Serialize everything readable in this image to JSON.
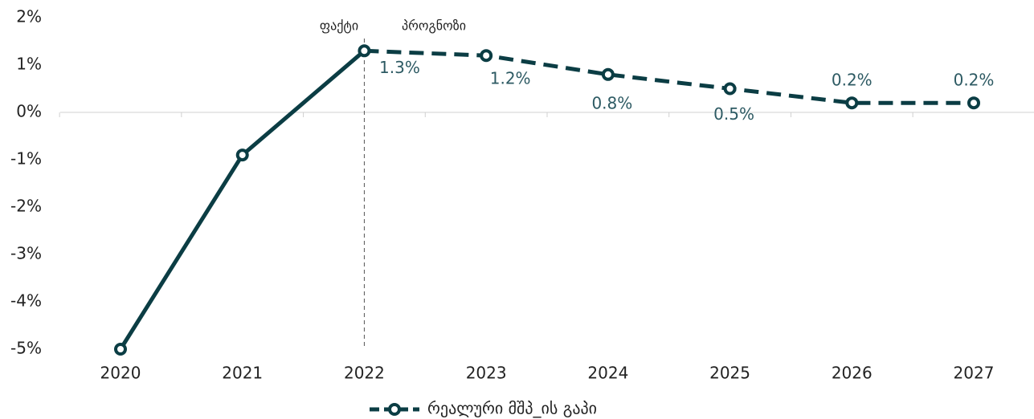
{
  "chart_data": {
    "type": "line",
    "categories": [
      "2020",
      "2021",
      "2022",
      "2023",
      "2024",
      "2025",
      "2026",
      "2027"
    ],
    "series": [
      {
        "name": "რეალური მშპ_ის გაპი",
        "color": "#0b3d44",
        "values": [
          -5.0,
          -0.9,
          1.3,
          1.2,
          0.8,
          0.5,
          0.2,
          0.2
        ],
        "value_labels": [
          null,
          null,
          "1.3%",
          "1.2%",
          "0.8%",
          "0.5%",
          "0.2%",
          "0.2%"
        ]
      }
    ],
    "annotations": [
      "ფაქტი",
      "პროგნოზი"
    ],
    "ylim": [
      -5,
      2
    ],
    "yticks": [
      {
        "value": -5,
        "label": "-5%"
      },
      {
        "value": -4,
        "label": "-4%"
      },
      {
        "value": -3,
        "label": "-3%"
      },
      {
        "value": -2,
        "label": "-2%"
      },
      {
        "value": -1,
        "label": "-1%"
      },
      {
        "value": 0,
        "label": "0%"
      },
      {
        "value": 1,
        "label": "1%"
      },
      {
        "value": 2,
        "label": "2%"
      }
    ],
    "legend": "bottom"
  }
}
